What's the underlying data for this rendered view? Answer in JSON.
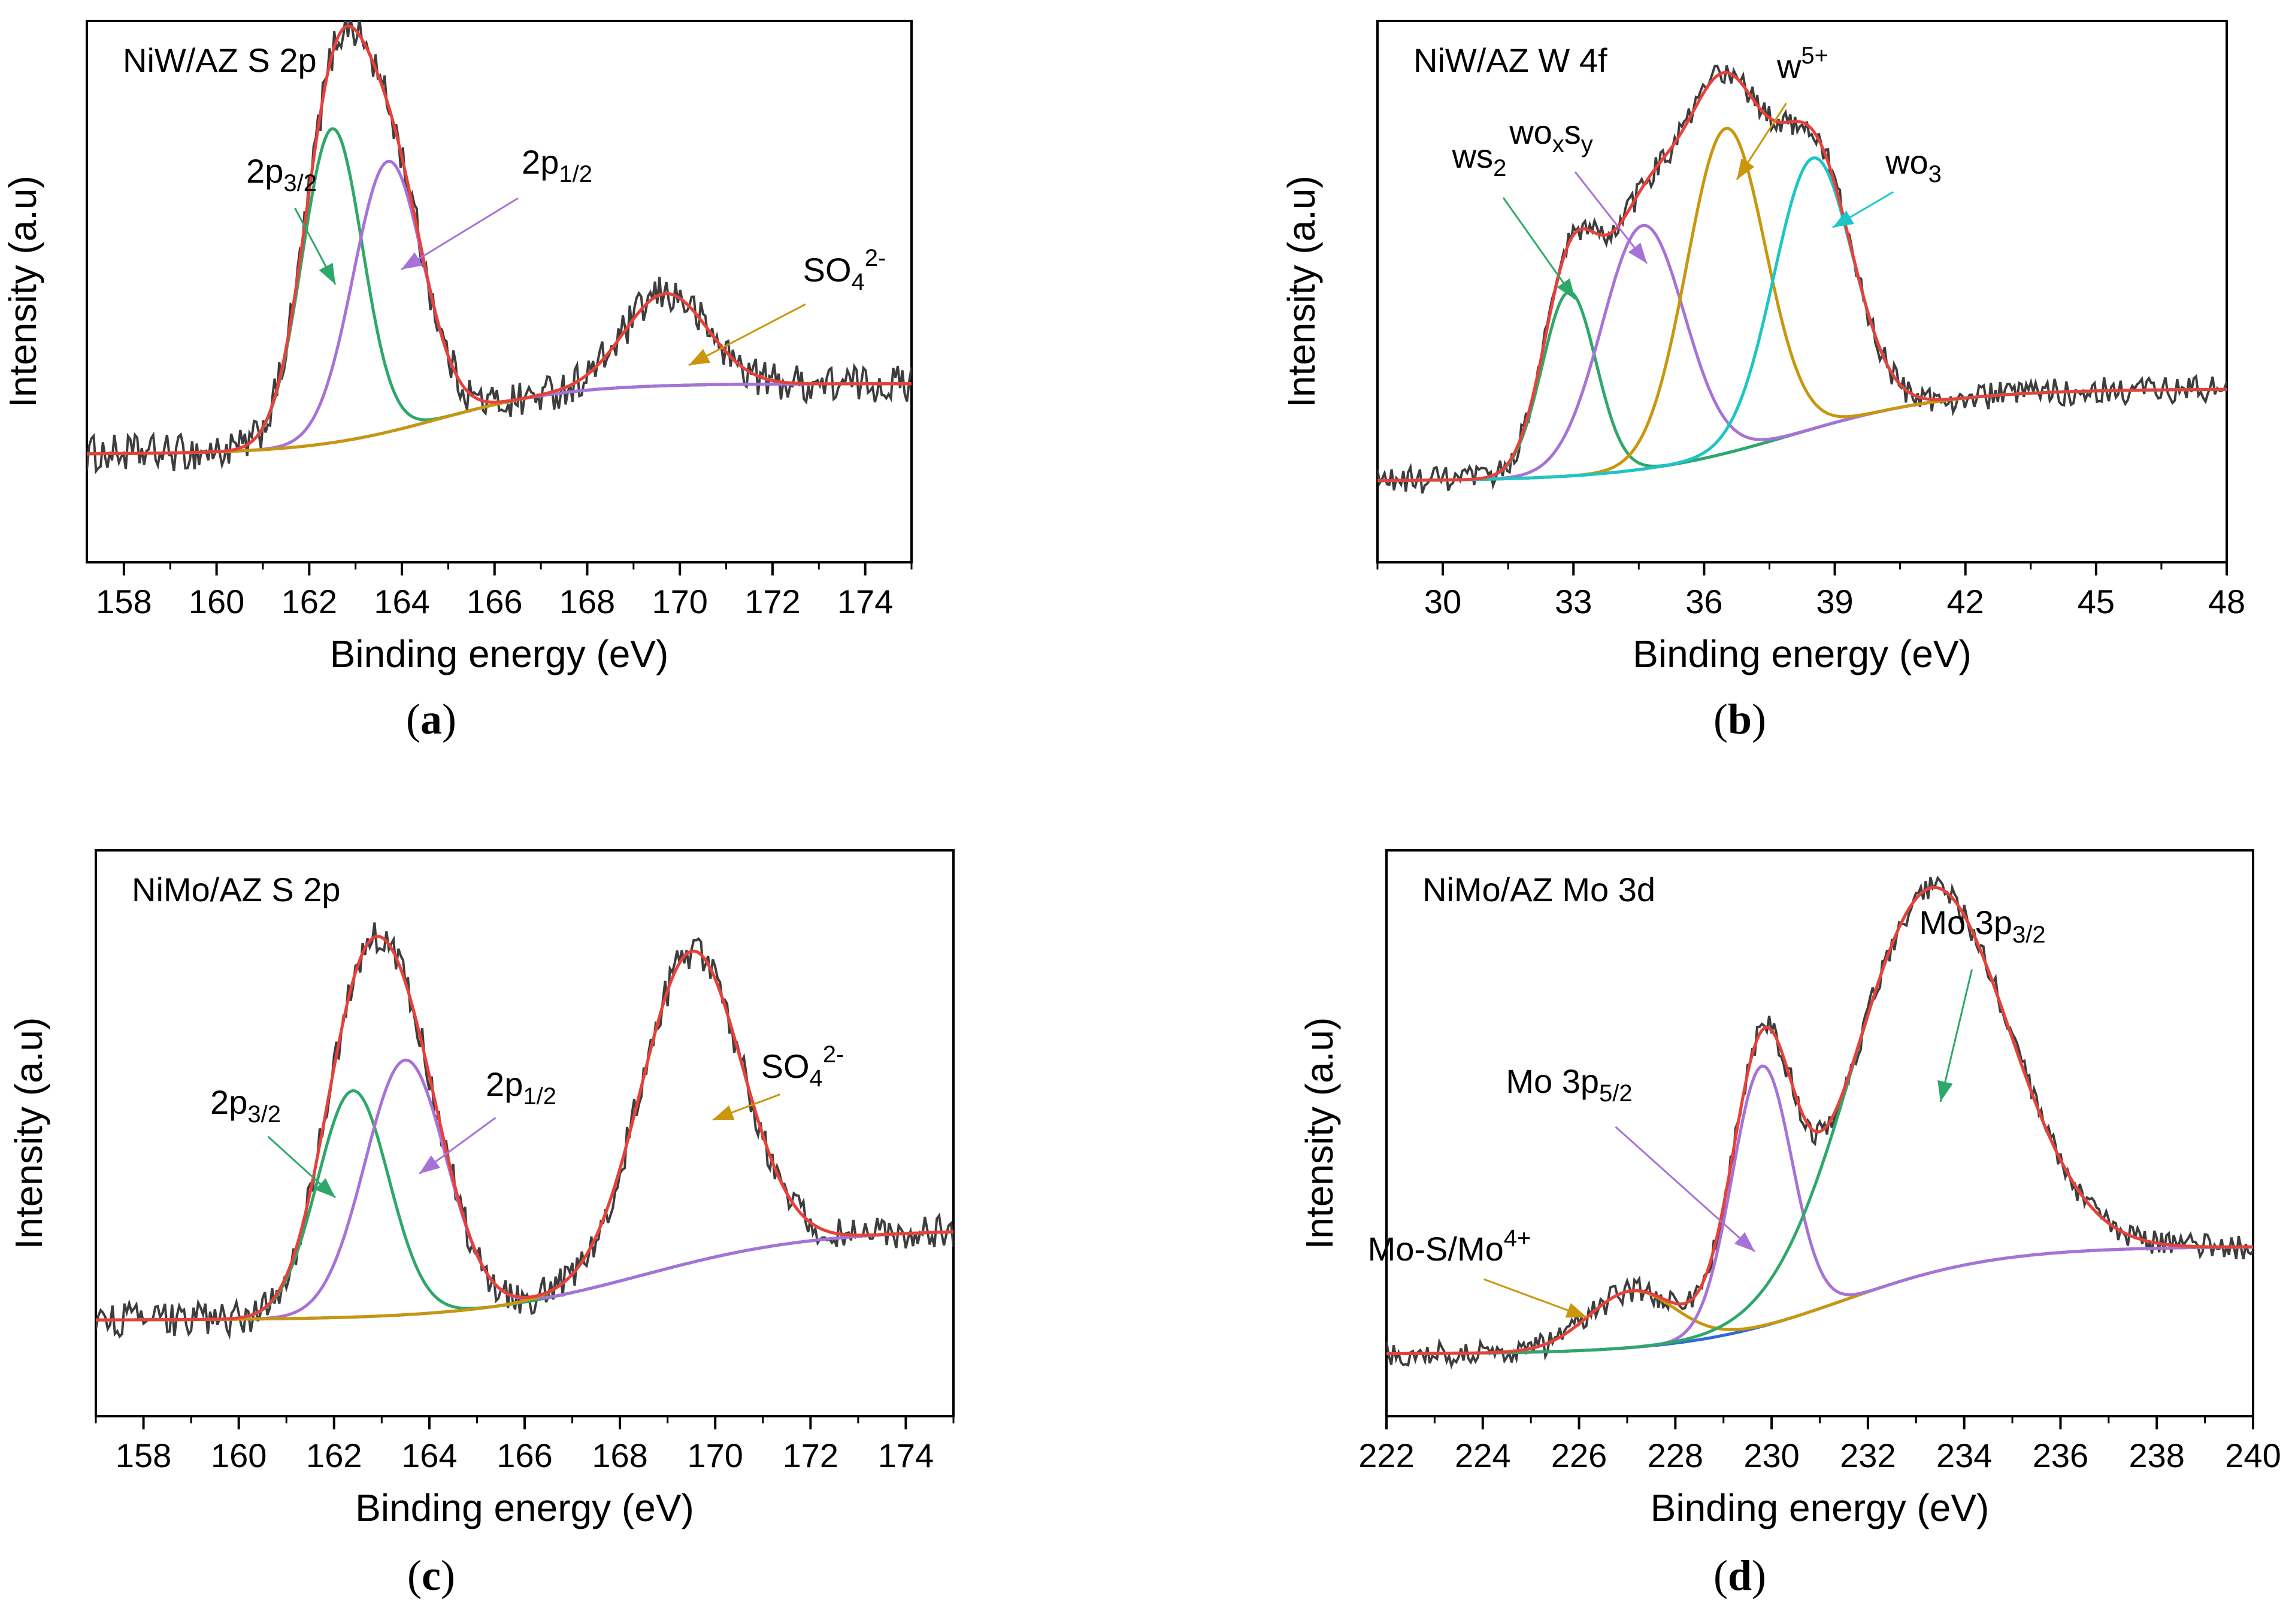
{
  "chart_data": [
    {
      "id": "a",
      "type": "line",
      "title": "NiW/AZ S 2p",
      "panel_label": "a",
      "xlabel": "Binding energy (eV)",
      "ylabel": "Intensity (a.u)",
      "xlim": [
        157.2,
        175
      ],
      "ylim": [
        0,
        1
      ],
      "xticks": [
        158,
        160,
        162,
        164,
        166,
        168,
        170,
        172,
        174
      ],
      "xtick_labels": [
        "158",
        "160",
        "162",
        "164",
        "166",
        "168",
        "170",
        "172",
        "174"
      ],
      "background_start": 0.2,
      "background_end": 0.33,
      "background_center": 164.8,
      "background_width": 1.4,
      "noise": 0.035,
      "series": [
        {
          "name": "2p3/2",
          "color": "#2ea86a",
          "center": 162.5,
          "height": 0.58,
          "width": 0.65
        },
        {
          "name": "2p1/2",
          "color": "#a672d8",
          "center": 163.7,
          "height": 0.5,
          "width": 0.75
        },
        {
          "name": "SO4 2-",
          "color": "#c9960c",
          "center": 169.7,
          "height": 0.17,
          "width": 0.9
        }
      ],
      "annotations": [
        {
          "text": "2p",
          "sub": "3/2",
          "sup": ""
        },
        {
          "text": "2p",
          "sub": "1/2",
          "sup": ""
        },
        {
          "text": "SO",
          "sub": "4",
          "sup": "2-"
        }
      ]
    },
    {
      "id": "b",
      "type": "line",
      "title": "NiW/AZ W 4f",
      "panel_label": "b",
      "xlabel": "Binding energy (eV)",
      "ylabel": "Intensity (a.u)",
      "xlim": [
        28.5,
        48
      ],
      "ylim": [
        0,
        1
      ],
      "xticks": [
        30,
        33,
        36,
        39,
        42,
        45,
        48
      ],
      "xtick_labels": [
        "30",
        "33",
        "36",
        "39",
        "42",
        "45",
        "48"
      ],
      "background_start": 0.15,
      "background_end": 0.32,
      "background_center": 38.0,
      "background_width": 1.8,
      "noise": 0.025,
      "series": [
        {
          "name": "WS2",
          "color": "#2ea86a",
          "center": 32.9,
          "height": 0.34,
          "width": 0.62
        },
        {
          "name": "WOxSy",
          "color": "#a672d8",
          "center": 34.6,
          "height": 0.45,
          "width": 0.95
        },
        {
          "name": "W5+",
          "color": "#c9960c",
          "center": 36.5,
          "height": 0.6,
          "width": 0.9
        },
        {
          "name": "WO3",
          "color": "#1cc6c6",
          "center": 38.5,
          "height": 0.5,
          "width": 0.9
        }
      ],
      "annotations": [
        {
          "text": "ws",
          "sub": "2",
          "sup": ""
        },
        {
          "text": "wo",
          "sub": "x",
          "sup": "",
          "text2": "s",
          "sub2": "y"
        },
        {
          "text": "w",
          "sub": "",
          "sup": "5+"
        },
        {
          "text": "wo",
          "sub": "3",
          "sup": ""
        }
      ]
    },
    {
      "id": "c",
      "type": "line",
      "title": "NiMo/AZ S 2p",
      "panel_label": "c",
      "xlabel": "Binding energy (eV)",
      "ylabel": "Intensity (a.u)",
      "xlim": [
        157,
        175
      ],
      "ylim": [
        0,
        1
      ],
      "xticks": [
        158,
        160,
        162,
        164,
        166,
        168,
        170,
        172,
        174
      ],
      "xtick_labels": [
        "158",
        "160",
        "162",
        "164",
        "166",
        "168",
        "170",
        "172",
        "174"
      ],
      "background_start": 0.17,
      "background_end": 0.33,
      "background_center": 168.5,
      "background_width": 1.8,
      "noise": 0.03,
      "series": [
        {
          "name": "2p3/2",
          "color": "#2ea86a",
          "center": 162.4,
          "height": 0.4,
          "width": 0.75
        },
        {
          "name": "2p1/2",
          "color": "#a672d8",
          "center": 163.5,
          "height": 0.45,
          "width": 0.85
        },
        {
          "name": "SO4 2-",
          "color": "#c9960c",
          "center": 169.5,
          "height": 0.55,
          "width": 1.05
        }
      ],
      "annotations": [
        {
          "text": "2p",
          "sub": "3/2",
          "sup": ""
        },
        {
          "text": "2p",
          "sub": "1/2",
          "sup": ""
        },
        {
          "text": "SO",
          "sub": "4",
          "sup": "2-"
        }
      ]
    },
    {
      "id": "d",
      "type": "line",
      "title": "NiMo/AZ  Mo 3d",
      "panel_label": "d",
      "xlabel": "Binding energy (eV)",
      "ylabel": "Intensity (a.u)",
      "xlim": [
        222,
        240
      ],
      "ylim": [
        0,
        1
      ],
      "xticks": [
        222,
        224,
        226,
        228,
        230,
        232,
        234,
        236,
        238,
        240
      ],
      "xtick_labels": [
        "222",
        "224",
        "226",
        "228",
        "230",
        "232",
        "234",
        "236",
        "238",
        "240"
      ],
      "background_start": 0.11,
      "background_end": 0.3,
      "background_center": 231.5,
      "background_width": 1.6,
      "noise": 0.022,
      "series": [
        {
          "name": "Mo-S/Mo4+",
          "color": "#c9960c",
          "center": 227.1,
          "height": 0.1,
          "width": 0.9
        },
        {
          "name": "Mo 3p5/2",
          "color": "#a672d8",
          "center": 229.8,
          "height": 0.46,
          "width": 0.62
        },
        {
          "name": "Mo 3p3/2",
          "color": "#2ea86a",
          "center": 233.3,
          "height": 0.68,
          "width": 1.6
        }
      ],
      "annotations": [
        {
          "text": "Mo-S/Mo",
          "sub": "",
          "sup": "4+"
        },
        {
          "text": "Mo 3p",
          "sub": "5/2",
          "sup": ""
        },
        {
          "text": "Mo 3p",
          "sub": "3/2",
          "sup": ""
        }
      ]
    }
  ],
  "colors": {
    "raw": "#3d3d3d",
    "fit": "#e8403a",
    "baseline": "#2e6ad6"
  }
}
